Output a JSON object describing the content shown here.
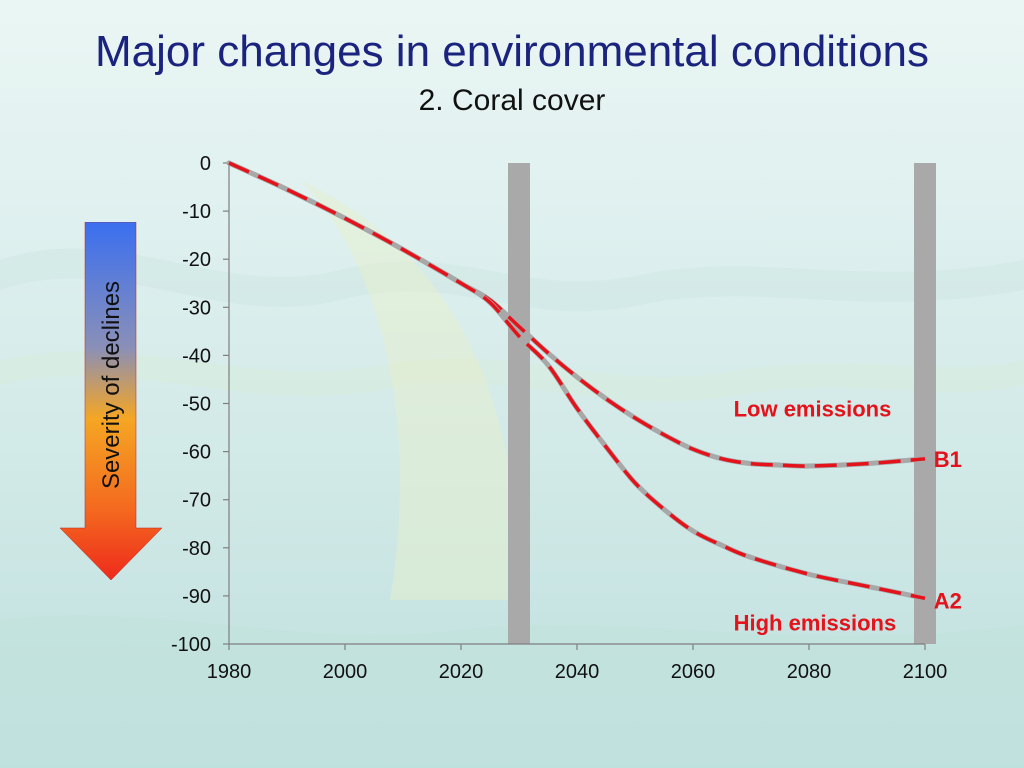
{
  "title": "Major changes in environmental conditions",
  "subtitle": "2. Coral cover",
  "severity_label": "Severity of declines",
  "colors": {
    "title": "#1a237e",
    "series": "#e3121b",
    "shadow": "#a8a8a8",
    "bar": "#a9a9a9"
  },
  "chart_data": {
    "type": "line",
    "title": "2. Coral cover",
    "xlabel": "",
    "ylabel": "",
    "xlim": [
      1980,
      2100
    ],
    "ylim": [
      -100,
      0
    ],
    "x_ticks": [
      1980,
      2000,
      2020,
      2040,
      2060,
      2080,
      2100
    ],
    "y_ticks": [
      0,
      -10,
      -20,
      -30,
      -40,
      -50,
      -60,
      -70,
      -80,
      -90,
      -100
    ],
    "vertical_bars": [
      2030,
      2100
    ],
    "series": [
      {
        "name": "B1",
        "description": "Low emissions",
        "x": [
          1980,
          1990,
          2000,
          2010,
          2020,
          2025,
          2030,
          2035,
          2040,
          2045,
          2050,
          2055,
          2060,
          2065,
          2070,
          2075,
          2080,
          2090,
          2100
        ],
        "y": [
          0,
          -5.5,
          -11.5,
          -18,
          -25,
          -28.5,
          -34,
          -39.5,
          -44.5,
          -49,
          -53,
          -56.5,
          -59.5,
          -61.5,
          -62.5,
          -62.8,
          -63,
          -62.5,
          -61.5
        ]
      },
      {
        "name": "A2",
        "description": "High emissions",
        "x": [
          1980,
          1990,
          2000,
          2010,
          2020,
          2025,
          2030,
          2035,
          2040,
          2045,
          2050,
          2055,
          2060,
          2065,
          2070,
          2080,
          2090,
          2100
        ],
        "y": [
          0,
          -5.5,
          -11.5,
          -18,
          -25,
          -29,
          -36,
          -42,
          -51,
          -59,
          -66.5,
          -72,
          -76.5,
          -79.5,
          -82,
          -85.5,
          -88,
          -90.5
        ]
      }
    ],
    "annotations": [
      {
        "text": "Low emissions",
        "x": 2067,
        "y": -51
      },
      {
        "text": "B1",
        "x": 2101,
        "y": -61.5
      },
      {
        "text": "A2",
        "x": 2101,
        "y": -91
      },
      {
        "text": "High emissions",
        "x": 2067,
        "y": -95.5
      }
    ]
  }
}
